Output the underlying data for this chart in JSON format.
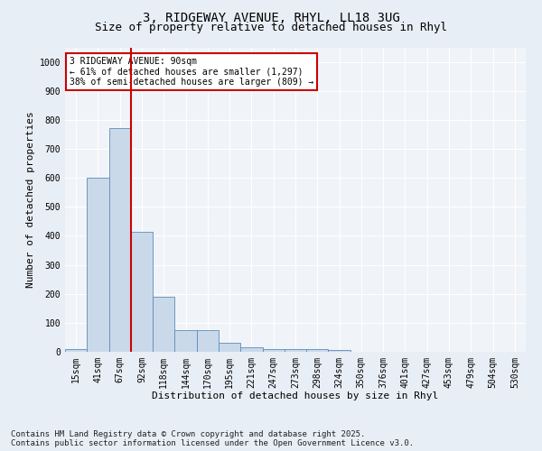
{
  "title_line1": "3, RIDGEWAY AVENUE, RHYL, LL18 3UG",
  "title_line2": "Size of property relative to detached houses in Rhyl",
  "xlabel": "Distribution of detached houses by size in Rhyl",
  "ylabel": "Number of detached properties",
  "categories": [
    "15sqm",
    "41sqm",
    "67sqm",
    "92sqm",
    "118sqm",
    "144sqm",
    "170sqm",
    "195sqm",
    "221sqm",
    "247sqm",
    "273sqm",
    "298sqm",
    "324sqm",
    "350sqm",
    "376sqm",
    "401sqm",
    "427sqm",
    "453sqm",
    "479sqm",
    "504sqm",
    "530sqm"
  ],
  "values": [
    10,
    600,
    770,
    415,
    190,
    75,
    75,
    30,
    15,
    10,
    10,
    10,
    5,
    0,
    0,
    0,
    0,
    0,
    0,
    0,
    0
  ],
  "bar_color": "#c9d9ea",
  "bar_edge_color": "#5f8ab5",
  "vline_color": "#cc0000",
  "annotation_text": "3 RIDGEWAY AVENUE: 90sqm\n← 61% of detached houses are smaller (1,297)\n38% of semi-detached houses are larger (809) →",
  "annotation_box_color": "white",
  "annotation_box_edge_color": "#cc0000",
  "ylim": [
    0,
    1050
  ],
  "yticks": [
    0,
    100,
    200,
    300,
    400,
    500,
    600,
    700,
    800,
    900,
    1000
  ],
  "bg_color": "#e8eef5",
  "plot_bg_color": "#f0f4f8",
  "footer_text": "Contains HM Land Registry data © Crown copyright and database right 2025.\nContains public sector information licensed under the Open Government Licence v3.0.",
  "title_fontsize": 10,
  "subtitle_fontsize": 9,
  "axis_label_fontsize": 8,
  "tick_fontsize": 7,
  "annotation_fontsize": 7,
  "footer_fontsize": 6.5
}
